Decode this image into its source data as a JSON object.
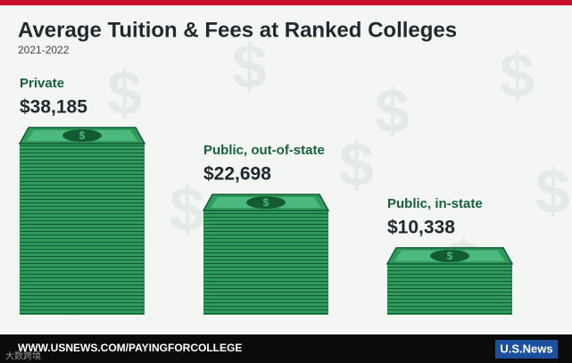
{
  "chart_data": {
    "type": "bar",
    "title": "Average Tuition & Fees at Ranked Colleges",
    "subtitle": "2021-2022",
    "categories": [
      "Private",
      "Public, out-of-state",
      "Public, in-state"
    ],
    "values": [
      38185,
      22698,
      10338
    ],
    "value_labels": [
      "$38,185",
      "$22,698",
      "$10,338"
    ],
    "color": "#2f9a5c",
    "source": "WWW.USNEWS.COM/PAYINGFORCOLLEGE",
    "logo": "U.S.News",
    "watermark": "大数跨境"
  }
}
